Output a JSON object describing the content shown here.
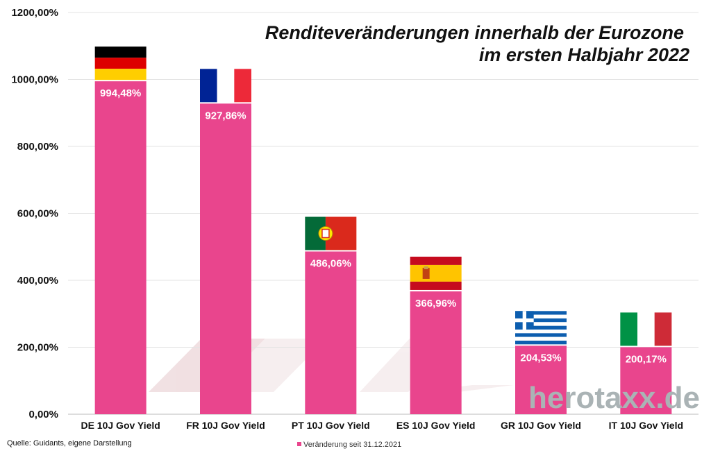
{
  "chart_data": {
    "type": "bar",
    "title_line1": "Renditeveränderungen innerhalb der Eurozone",
    "title_line2": "im ersten Halbjahr 2022",
    "categories": [
      "DE 10J Gov Yield",
      "FR 10J Gov Yield",
      "PT 10J Gov Yield",
      "ES 10J Gov Yield",
      "GR 10J Gov Yield",
      "IT 10J Gov Yield"
    ],
    "series": [
      {
        "name": "Veränderung seit 31.12.2021",
        "values": [
          994.48,
          927.86,
          486.06,
          366.96,
          204.53,
          200.17
        ]
      }
    ],
    "data_labels": [
      "994,48%",
      "927,86%",
      "486,06%",
      "366,96%",
      "204,53%",
      "200,17%"
    ],
    "y_ticks": [
      "0,00%",
      "200,00%",
      "400,00%",
      "600,00%",
      "800,00%",
      "1000,00%",
      "1200,00%"
    ],
    "ylim": [
      0,
      1200
    ],
    "flags": [
      "germany-flag",
      "france-flag",
      "portugal-flag",
      "spain-flag",
      "greece-flag",
      "italy-flag"
    ],
    "bar_color": "#e9458d",
    "grid": true,
    "legend_position": "bottom"
  },
  "source": "Quelle: Guidants, eigene Darstellung",
  "watermark": "herotaxx.de"
}
